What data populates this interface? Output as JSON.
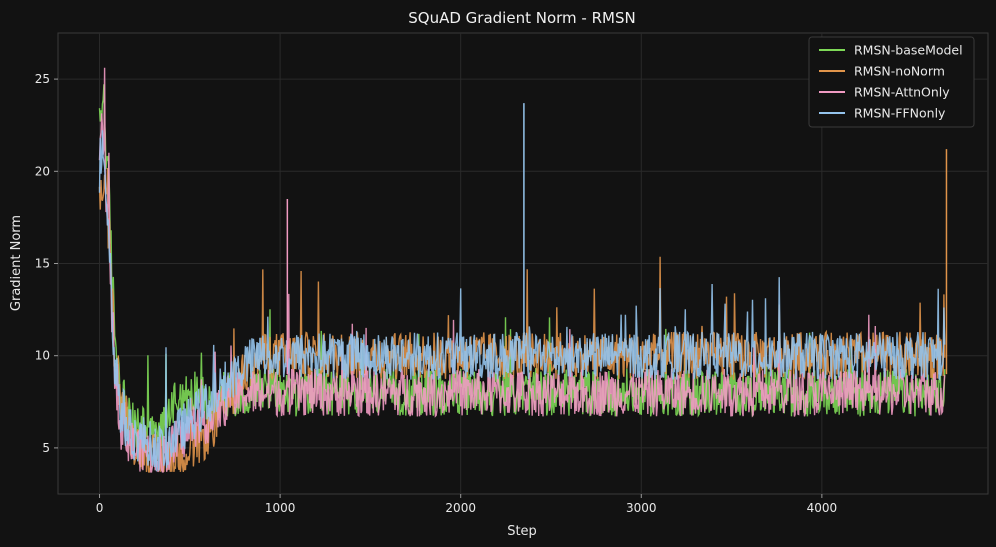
{
  "chart_data": {
    "type": "line",
    "title": "SQuAD Gradient Norm - RMSN",
    "xlabel": "Step",
    "ylabel": "Gradient Norm",
    "xlim": [
      -230,
      4920
    ],
    "ylim": [
      2.5,
      27.5
    ],
    "xticks": [
      0,
      1000,
      2000,
      3000,
      4000
    ],
    "yticks": [
      5,
      10,
      15,
      20,
      25
    ],
    "grid": true,
    "legend_position": "top-right",
    "series": [
      {
        "name": "RMSN-baseModel",
        "color": "#7ed957",
        "x": [
          0,
          20,
          50,
          80,
          120,
          160,
          200,
          250,
          300,
          350,
          400,
          450,
          500,
          550,
          600,
          650,
          700,
          800,
          900,
          1000,
          1200,
          1500,
          2000,
          2500,
          3000,
          3500,
          4000,
          4500,
          4680
        ],
        "y": [
          22,
          24.5,
          19,
          12,
          8,
          6.5,
          6,
          6.5,
          5.5,
          6,
          7.5,
          8,
          7.5,
          8.5,
          7,
          7.5,
          8,
          8,
          8.5,
          8,
          8,
          8,
          8,
          8,
          8,
          8,
          8,
          8,
          8
        ]
      },
      {
        "name": "RMSN-noNorm",
        "color": "#e0944a",
        "x": [
          0,
          20,
          50,
          80,
          120,
          160,
          200,
          250,
          300,
          350,
          400,
          450,
          500,
          550,
          600,
          650,
          700,
          800,
          900,
          1000,
          1200,
          1500,
          2000,
          2500,
          3000,
          3500,
          4000,
          4500,
          4680
        ],
        "y": [
          18,
          20,
          17,
          11,
          7.5,
          6,
          5.2,
          5,
          4.5,
          4.5,
          4.6,
          4.7,
          5,
          5.3,
          5.8,
          6.5,
          7.5,
          9,
          10,
          10,
          10,
          10,
          10,
          10,
          10,
          10,
          10,
          10,
          10
        ]
      },
      {
        "name": "RMSN-AttnOnly",
        "color": "#f09ac2",
        "x": [
          0,
          20,
          50,
          80,
          120,
          160,
          200,
          250,
          300,
          350,
          400,
          450,
          500,
          550,
          600,
          650,
          700,
          800,
          900,
          1000,
          1200,
          1500,
          2000,
          2500,
          3000,
          3500,
          4000,
          4500,
          4680
        ],
        "y": [
          21,
          22,
          17,
          10,
          6.5,
          5.5,
          5,
          5,
          4.5,
          4.6,
          5,
          5.5,
          6,
          6.5,
          6.5,
          7,
          7.5,
          8,
          8,
          8,
          8,
          8,
          8,
          8,
          8,
          8,
          8,
          8,
          8
        ]
      },
      {
        "name": "RMSN-FFNonly",
        "color": "#94c3ec",
        "x": [
          0,
          20,
          50,
          80,
          120,
          160,
          200,
          250,
          300,
          350,
          400,
          450,
          500,
          550,
          600,
          650,
          700,
          800,
          900,
          1000,
          1200,
          1500,
          2000,
          2500,
          3000,
          3500,
          4000,
          4500,
          4680
        ],
        "y": [
          20,
          22,
          17,
          10,
          7,
          6,
          5.5,
          5.5,
          5,
          5,
          5.5,
          6,
          6.5,
          7,
          7.5,
          8,
          8.5,
          9.5,
          10,
          10,
          10,
          10,
          10,
          10,
          10,
          10,
          10,
          10,
          10
        ]
      }
    ],
    "annotations": [
      {
        "label": "spike",
        "x": 2350,
        "y": 23.7
      },
      {
        "label": "spike",
        "x": 4690,
        "y": 21.2
      },
      {
        "label": "spike",
        "x": 1040,
        "y": 18.5
      }
    ]
  }
}
